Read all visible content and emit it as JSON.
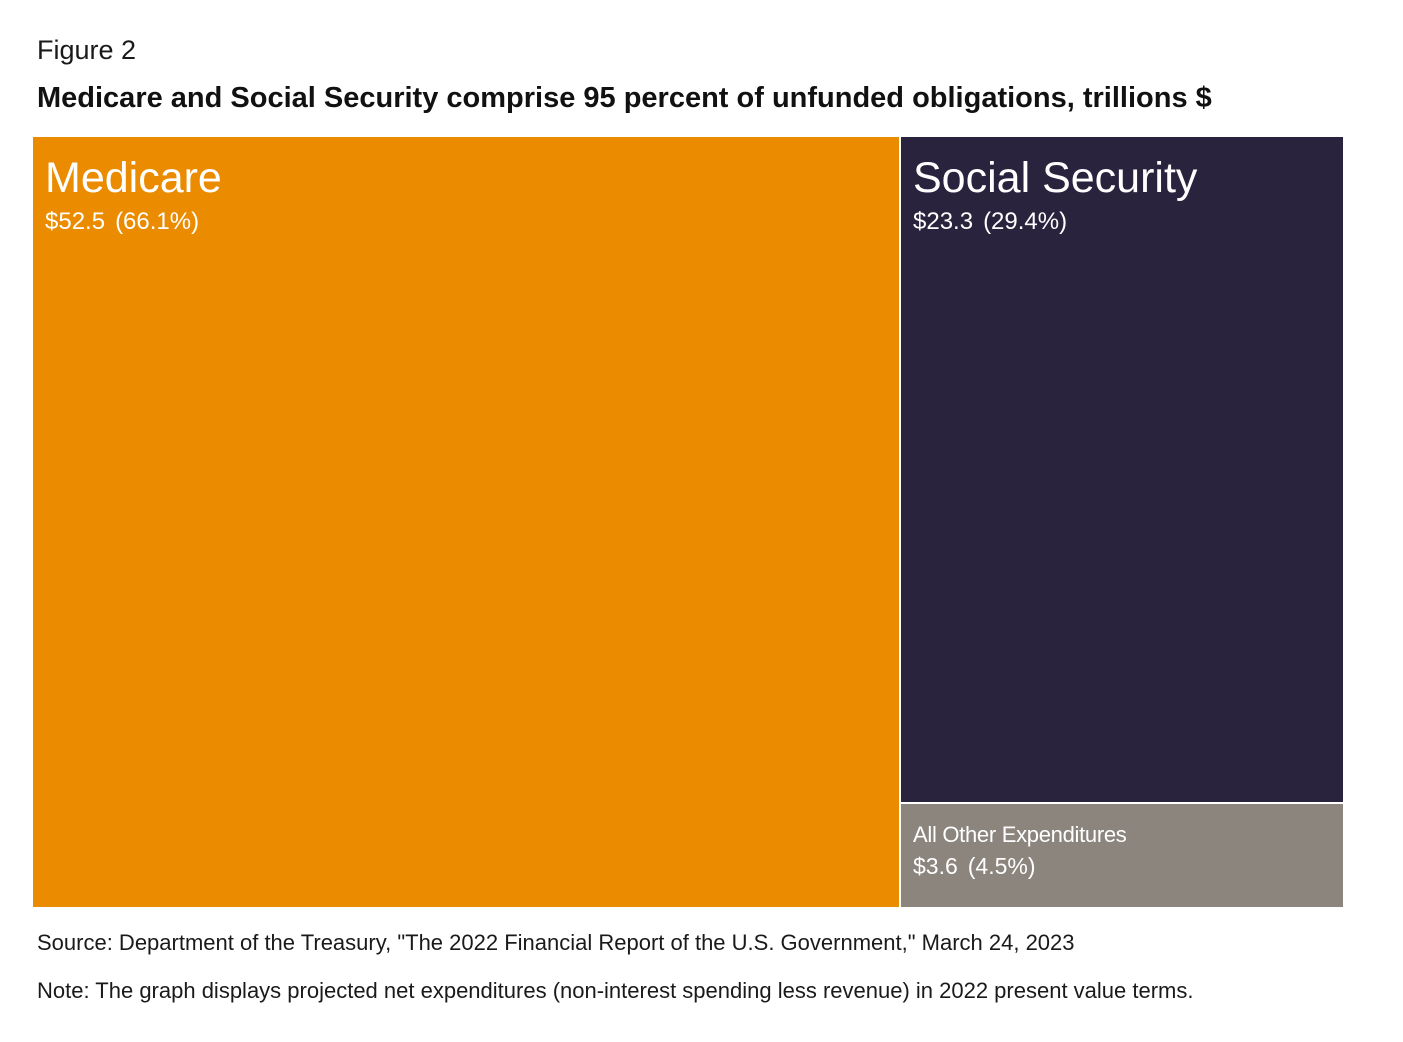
{
  "figure_label": "Figure 2",
  "source": "Source: Department of the Treasury, \"The 2022 Financial Report of the U.S. Government,\" March 24, 2023",
  "note": "Note: The graph displays projected net expenditures (non-interest spending less revenue) in 2022 present value terms.",
  "chart_data": {
    "type": "treemap",
    "title": "Medicare and Social Security comprise 95 percent of unfunded obligations, trillions $",
    "units": "trillions $",
    "items": [
      {
        "name": "Medicare",
        "value": 52.5,
        "value_label": "$52.5",
        "percent": 66.1,
        "percent_label": "(66.1%)",
        "color": "#EA8B00"
      },
      {
        "name": "Social Security",
        "value": 23.3,
        "value_label": "$23.3",
        "percent": 29.4,
        "percent_label": "(29.4%)",
        "color": "#29233D"
      },
      {
        "name": "All Other Expenditures",
        "value": 3.6,
        "value_label": "$3.6",
        "percent": 4.5,
        "percent_label": "(4.5%)",
        "color": "#8B857E"
      }
    ]
  }
}
